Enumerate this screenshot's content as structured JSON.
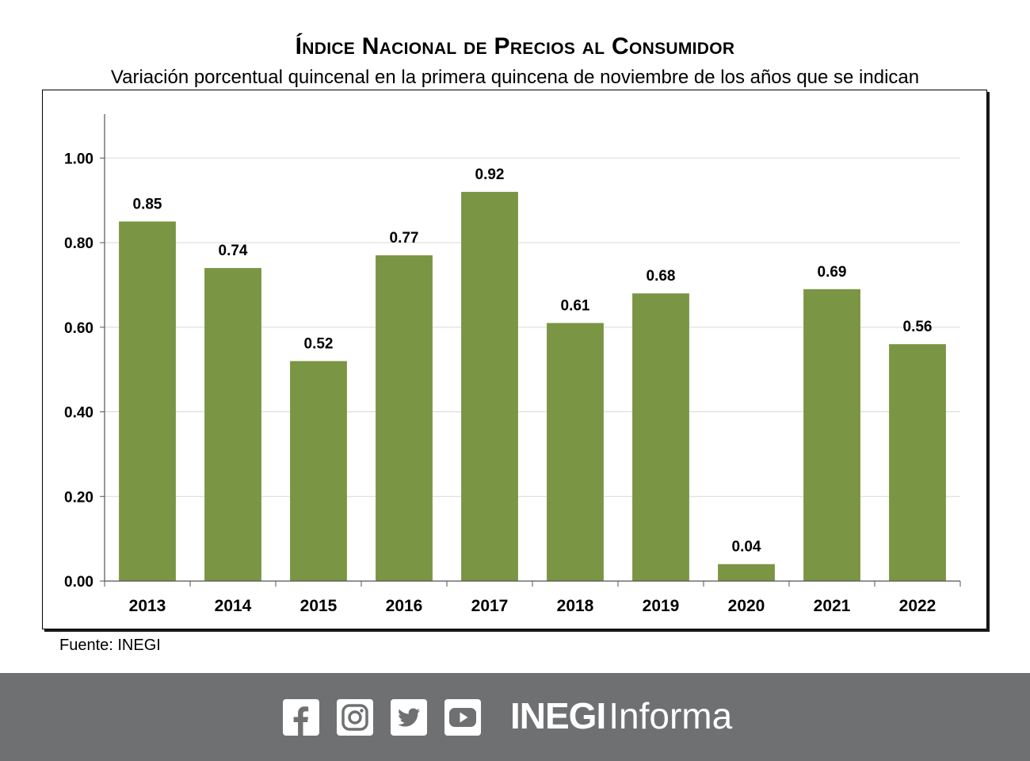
{
  "title": "Índice Nacional de Precios al Consumidor",
  "subtitle": "Variación porcentual quincenal en la primera quincena de noviembre de los años que se indican",
  "source": "Fuente: INEGI",
  "footer": {
    "brand_bold": "INEGI",
    "brand_light": "Informa",
    "icons": [
      "facebook-icon",
      "instagram-icon",
      "twitter-icon",
      "youtube-icon"
    ],
    "background": "#6f7072"
  },
  "chart_data": {
    "type": "bar",
    "categories": [
      "2013",
      "2014",
      "2015",
      "2016",
      "2017",
      "2018",
      "2019",
      "2020",
      "2021",
      "2022"
    ],
    "values": [
      0.85,
      0.74,
      0.52,
      0.77,
      0.92,
      0.61,
      0.68,
      0.04,
      0.69,
      0.56
    ],
    "data_labels": [
      "0.85",
      "0.74",
      "0.52",
      "0.77",
      "0.92",
      "0.61",
      "0.68",
      "0.04",
      "0.69",
      "0.56"
    ],
    "yticks": [
      "0.00",
      "0.20",
      "0.40",
      "0.60",
      "0.80",
      "1.00"
    ],
    "ylim": [
      0,
      1.1
    ],
    "grid": true,
    "bar_color": "#7a9543",
    "xlabel": "",
    "ylabel": ""
  }
}
